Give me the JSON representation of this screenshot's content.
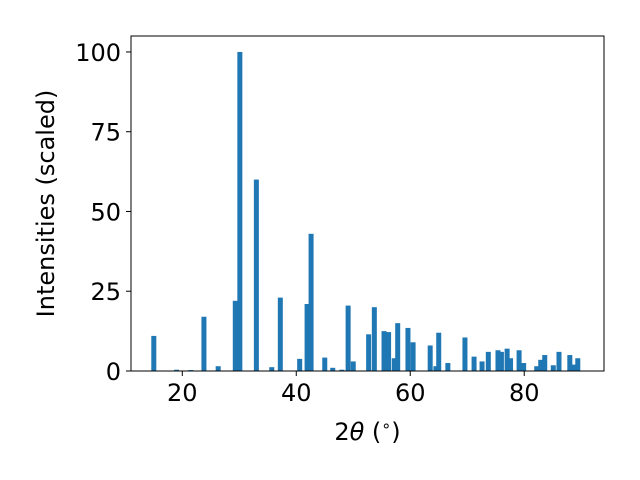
{
  "chart_data": {
    "type": "bar",
    "title": "",
    "xlabel": "2θ (°)",
    "xlabel_parts": {
      "prefix": "2",
      "theta": "θ",
      "paren_open": " (",
      "degree": "∘",
      "paren_close": ")"
    },
    "ylabel": "Intensities (scaled)",
    "xlim": [
      11,
      94
    ],
    "ylim": [
      0,
      105
    ],
    "xticks": [
      20,
      40,
      60,
      80
    ],
    "yticks": [
      0,
      25,
      50,
      75,
      100
    ],
    "grid": false,
    "legend": "none",
    "bar_color": "#1f77b4",
    "x": [
      15.0,
      19.0,
      21.5,
      23.8,
      26.3,
      29.3,
      30.1,
      33.0,
      35.7,
      37.2,
      40.6,
      41.9,
      42.6,
      45.0,
      46.4,
      48.0,
      49.1,
      50.0,
      52.7,
      53.7,
      55.4,
      56.2,
      57.2,
      57.8,
      59.6,
      60.5,
      63.5,
      64.5,
      65.0,
      66.6,
      69.6,
      71.2,
      72.6,
      73.7,
      75.4,
      76.0,
      77.0,
      77.6,
      79.1,
      79.9,
      82.2,
      82.9,
      83.6,
      85.1,
      86.1,
      88.0,
      88.7,
      89.4
    ],
    "values": [
      11,
      0.4,
      0.3,
      17,
      1.5,
      22,
      100,
      60,
      1.2,
      23,
      3.8,
      21,
      43,
      4.2,
      1,
      0.4,
      20.5,
      3,
      11.5,
      20,
      12.5,
      12.2,
      4,
      15,
      13.5,
      9,
      8,
      1.5,
      12,
      2.5,
      10.5,
      4.5,
      3,
      6,
      6.5,
      6,
      7,
      4,
      6.5,
      2.5,
      1.5,
      3.5,
      5,
      1.8,
      6,
      5,
      2,
      4
    ]
  }
}
